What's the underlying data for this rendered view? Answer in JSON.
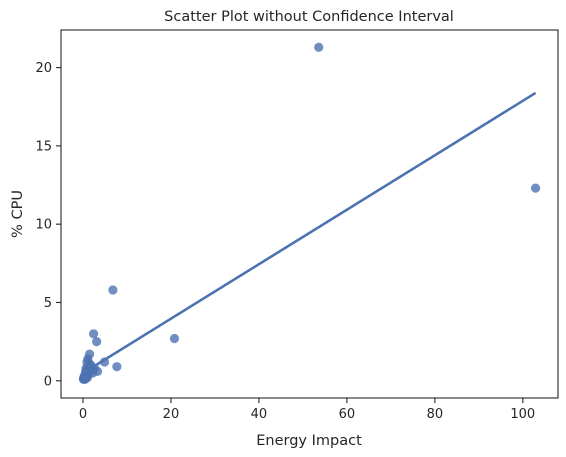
{
  "chart_data": {
    "type": "scatter",
    "title": "Scatter Plot without Confidence Interval",
    "xlabel": "Energy Impact",
    "ylabel": "% CPU",
    "xlim": [
      -5,
      108
    ],
    "ylim": [
      -1.1,
      22.4
    ],
    "x_ticks": [
      0,
      20,
      40,
      60,
      80,
      100
    ],
    "y_ticks": [
      0,
      5,
      10,
      15,
      20
    ],
    "x_tick_labels": [
      "0",
      "20",
      "40",
      "60",
      "80",
      "100"
    ],
    "y_tick_labels": [
      "0",
      "5",
      "10",
      "15",
      "20"
    ],
    "grid": false,
    "legend": "none",
    "colors": {
      "points": "#4c72b0",
      "line": "#4c72b0",
      "axes": "#262626"
    },
    "series": [
      {
        "points": [
          {
            "x": 53.6,
            "y": 21.3
          },
          {
            "x": 102.9,
            "y": 12.3
          },
          {
            "x": 6.8,
            "y": 5.8
          },
          {
            "x": 2.4,
            "y": 3.0
          },
          {
            "x": 3.1,
            "y": 2.5
          },
          {
            "x": 20.8,
            "y": 2.7
          },
          {
            "x": 1.5,
            "y": 1.7
          },
          {
            "x": 4.9,
            "y": 1.2
          },
          {
            "x": 7.7,
            "y": 0.9
          },
          {
            "x": 1.1,
            "y": 1.4
          },
          {
            "x": 0.9,
            "y": 1.2
          },
          {
            "x": 1.8,
            "y": 1.0
          },
          {
            "x": 1.3,
            "y": 0.9
          },
          {
            "x": 2.6,
            "y": 0.8
          },
          {
            "x": 3.3,
            "y": 0.6
          },
          {
            "x": 2.2,
            "y": 0.5
          },
          {
            "x": 1.6,
            "y": 0.6
          },
          {
            "x": 1.0,
            "y": 0.7
          },
          {
            "x": 0.7,
            "y": 0.8
          },
          {
            "x": 0.6,
            "y": 0.6
          },
          {
            "x": 1.2,
            "y": 0.4
          },
          {
            "x": 0.8,
            "y": 0.3
          },
          {
            "x": 0.5,
            "y": 0.4
          },
          {
            "x": 0.4,
            "y": 0.2
          },
          {
            "x": 0.3,
            "y": 0.1
          },
          {
            "x": 0.2,
            "y": 0.1
          },
          {
            "x": 0.2,
            "y": 0.2
          },
          {
            "x": 0.1,
            "y": 0.1
          },
          {
            "x": 0.6,
            "y": 0.2
          },
          {
            "x": 0.9,
            "y": 0.5
          },
          {
            "x": 1.4,
            "y": 1.1
          },
          {
            "x": 2.0,
            "y": 0.7
          },
          {
            "x": 0.3,
            "y": 0.3
          },
          {
            "x": 0.5,
            "y": 0.1
          },
          {
            "x": 1.0,
            "y": 0.2
          }
        ]
      }
    ],
    "regression_line": {
      "x": [
        0,
        102.9
      ],
      "y": [
        0.49,
        18.38
      ]
    }
  }
}
